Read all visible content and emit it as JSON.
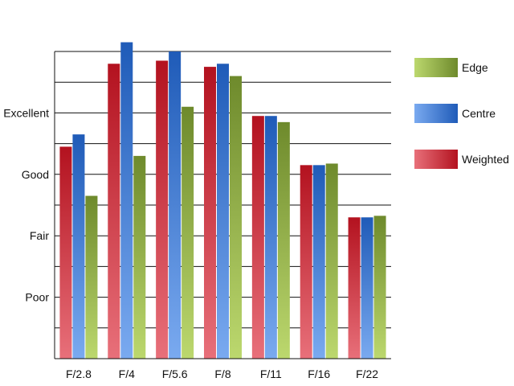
{
  "chart_data": {
    "type": "bar",
    "title": "",
    "xlabel": "",
    "ylabel": "",
    "categories": [
      "F/2.8",
      "F/4",
      "F/5.6",
      "F/8",
      "F/11",
      "F/16",
      "F/22"
    ],
    "ylim": [
      0,
      10
    ],
    "yticks": [
      {
        "value": 2,
        "label": "Poor"
      },
      {
        "value": 4,
        "label": "Fair"
      },
      {
        "value": 6,
        "label": "Good"
      },
      {
        "value": 8,
        "label": "Excellent"
      }
    ],
    "grid": true,
    "legend_position": "right",
    "series": [
      {
        "name": "Weighted",
        "color_dark": "#b3121f",
        "color_light": "#e8707a",
        "values": [
          6.9,
          9.6,
          9.7,
          9.5,
          7.9,
          6.3,
          4.6
        ]
      },
      {
        "name": "Centre",
        "color_dark": "#1f5bb8",
        "color_light": "#7aaaf0",
        "values": [
          7.3,
          10.3,
          10.0,
          9.6,
          7.9,
          6.3,
          4.6
        ]
      },
      {
        "name": "Edge",
        "color_dark": "#6e8a2c",
        "color_light": "#bcd86e",
        "values": [
          5.3,
          6.6,
          8.2,
          9.2,
          7.7,
          6.35,
          4.65
        ]
      }
    ],
    "legend_order": [
      "Edge",
      "Centre",
      "Weighted"
    ]
  }
}
